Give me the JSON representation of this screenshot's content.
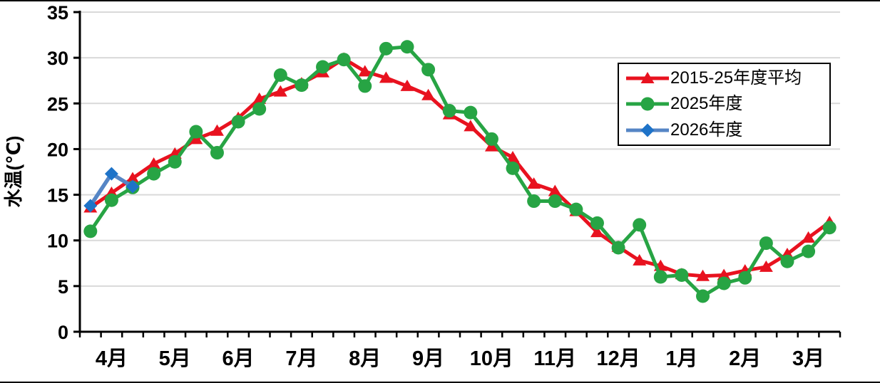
{
  "chart_data": {
    "type": "line",
    "ylabel": "水温(℃)",
    "ylim": [
      0,
      35
    ],
    "yticks": [
      0,
      5,
      10,
      15,
      20,
      25,
      30,
      35
    ],
    "grid": true,
    "grid_color": "#d9d9d9",
    "axis_color": "#000000",
    "legend_position": "upper right",
    "x_months": [
      "4月",
      "5月",
      "6月",
      "7月",
      "8月",
      "9月",
      "10月",
      "11月",
      "12月",
      "1月",
      "2月",
      "3月"
    ],
    "points_per_month": 3,
    "series": [
      {
        "name": "2015-25年度平均",
        "color": "#e8121f",
        "marker": "triangle",
        "values": [
          13.6,
          15.2,
          16.8,
          18.4,
          19.5,
          21.1,
          22.0,
          23.4,
          25.5,
          26.3,
          27.2,
          28.4,
          29.9,
          28.5,
          27.8,
          26.9,
          25.9,
          23.8,
          22.5,
          20.3,
          19.1,
          16.2,
          15.4,
          13.2,
          10.9,
          9.3,
          7.8,
          7.2,
          6.3,
          6.1,
          6.2,
          6.7,
          7.1,
          8.5,
          10.3,
          12.0
        ]
      },
      {
        "name": "2025年度",
        "color": "#27a444",
        "marker": "circle",
        "values": [
          11.0,
          14.4,
          15.8,
          17.3,
          18.6,
          21.9,
          19.6,
          23.0,
          24.4,
          28.1,
          27.0,
          29.0,
          29.8,
          26.9,
          31.0,
          31.2,
          28.7,
          24.2,
          24.0,
          21.1,
          17.9,
          14.3,
          14.3,
          13.4,
          11.9,
          9.2,
          11.7,
          6.0,
          6.2,
          3.9,
          5.3,
          5.9,
          9.7,
          7.7,
          8.8,
          11.4
        ]
      },
      {
        "name": "2026年度",
        "color": "#5585c5",
        "marker_color": "#1e73c8",
        "marker": "diamond",
        "values": [
          13.8,
          17.3,
          15.9
        ]
      }
    ]
  }
}
